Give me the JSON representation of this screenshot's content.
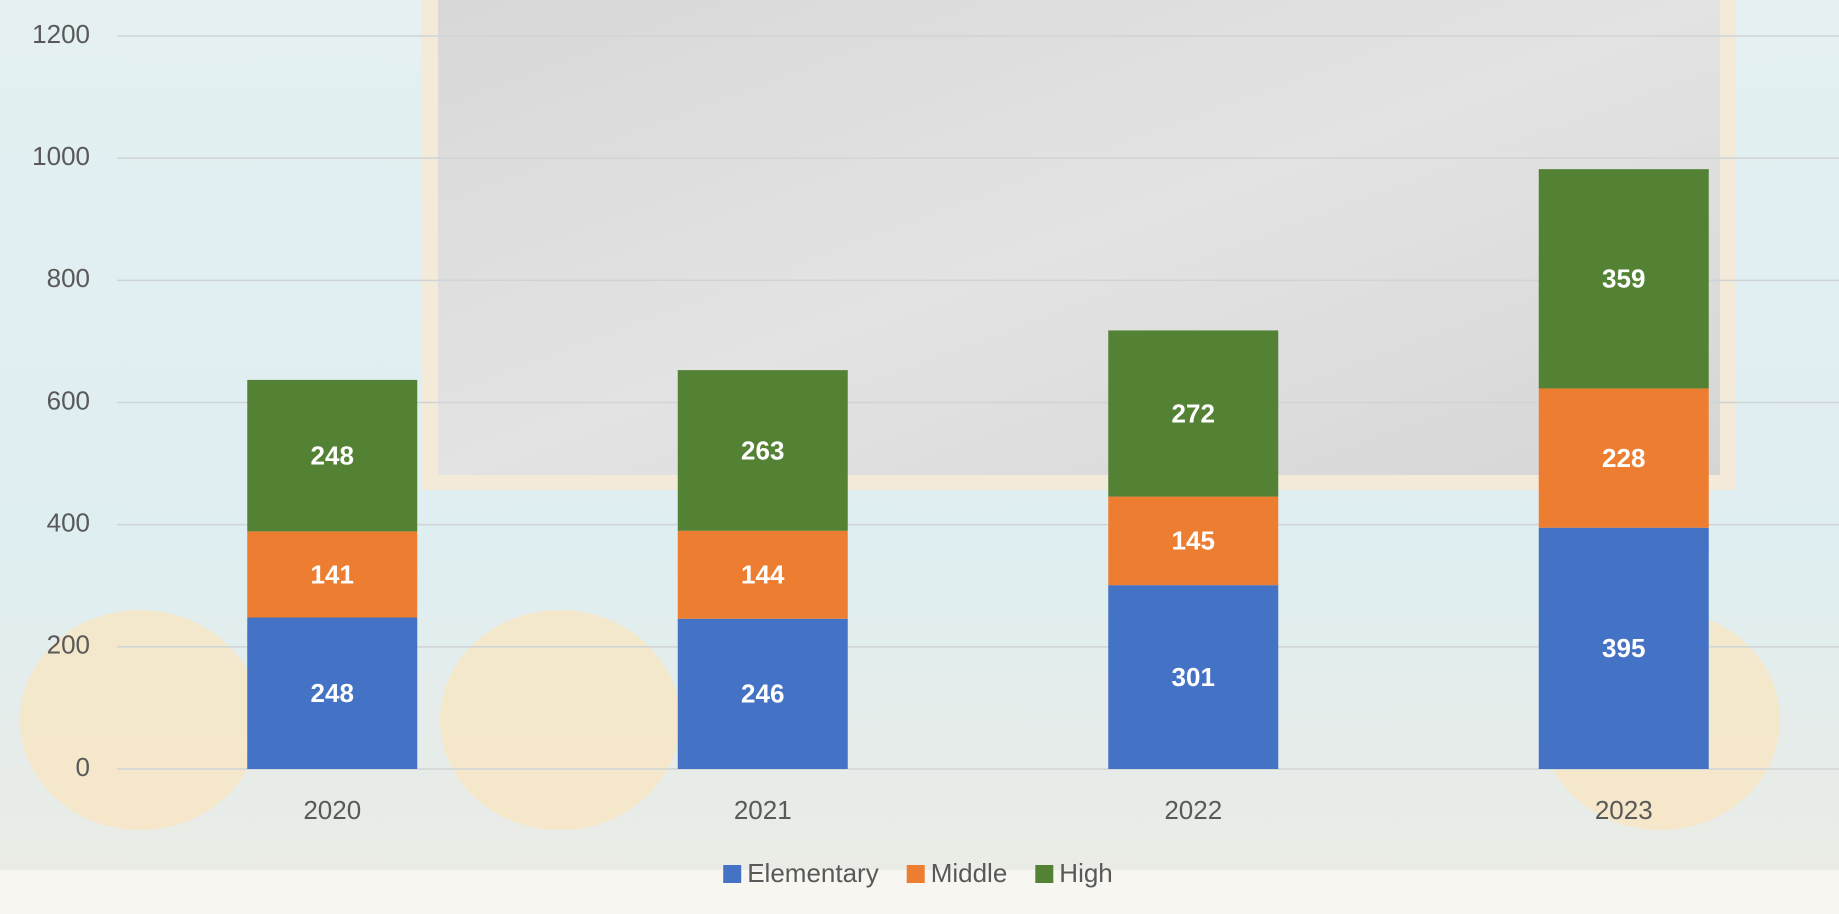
{
  "chart_data": {
    "type": "stacked_bar",
    "categories": [
      "2020",
      "2021",
      "2022",
      "2023"
    ],
    "series": [
      {
        "name": "Elementary",
        "color": "#4472c4",
        "values": [
          248,
          246,
          301,
          395
        ]
      },
      {
        "name": "Middle",
        "color": "#ed7d31",
        "values": [
          141,
          144,
          145,
          228
        ]
      },
      {
        "name": "High",
        "color": "#548235",
        "values": [
          248,
          263,
          272,
          359
        ]
      }
    ],
    "ylim": [
      0,
      1200
    ],
    "yticks": [
      0,
      200,
      400,
      600,
      800,
      1000,
      1200
    ],
    "grid": true,
    "legend": "bottom"
  }
}
